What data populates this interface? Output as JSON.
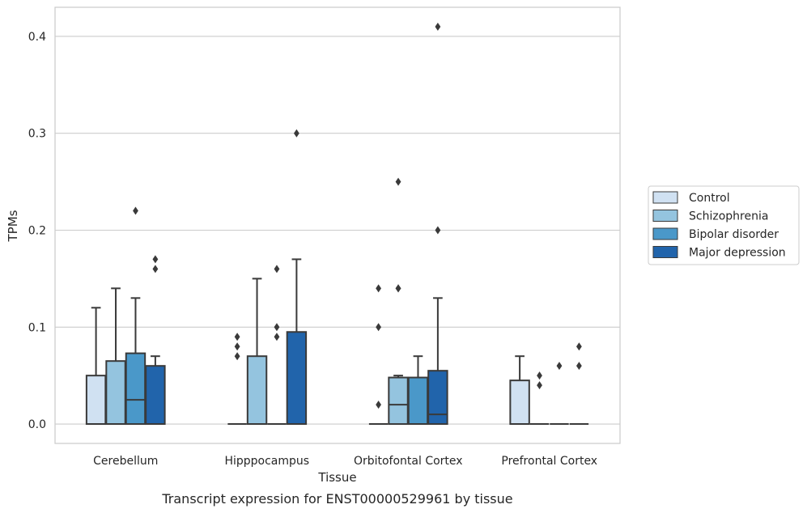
{
  "caption": "Transcript expression for ENST00000529961 by tissue",
  "chart_data": {
    "type": "box",
    "title": "",
    "xlabel": "Tissue",
    "ylabel": "TPMs",
    "ylim": [
      -0.02,
      0.43
    ],
    "yticks": [
      0.0,
      0.1,
      0.2,
      0.3,
      0.4
    ],
    "ytick_labels": [
      "0.0",
      "0.1",
      "0.2",
      "0.3",
      "0.4"
    ],
    "grid": "horizontal",
    "legend_position": "right",
    "categories": [
      "Cerebellum",
      "Hipppocampus",
      "Orbitofontal Cortex",
      "Prefrontal Cortex"
    ],
    "series": [
      {
        "name": "Control",
        "color": "#d0e1f2",
        "boxes": [
          {
            "q1": 0.0,
            "median": 0.0,
            "q3": 0.05,
            "whisker_low": 0.0,
            "whisker_high": 0.12,
            "outliers": []
          },
          {
            "q1": 0.0,
            "median": 0.0,
            "q3": 0.0,
            "whisker_low": 0.0,
            "whisker_high": 0.0,
            "outliers": [
              0.07,
              0.08,
              0.09
            ]
          },
          {
            "q1": 0.0,
            "median": 0.0,
            "q3": 0.0,
            "whisker_low": 0.0,
            "whisker_high": 0.0,
            "outliers": [
              0.02,
              0.1,
              0.14
            ]
          },
          {
            "q1": 0.0,
            "median": 0.0,
            "q3": 0.045,
            "whisker_low": 0.0,
            "whisker_high": 0.07,
            "outliers": []
          }
        ]
      },
      {
        "name": "Schizophrenia",
        "color": "#94c4df",
        "boxes": [
          {
            "q1": 0.0,
            "median": 0.0,
            "q3": 0.065,
            "whisker_low": 0.0,
            "whisker_high": 0.14,
            "outliers": []
          },
          {
            "q1": 0.0,
            "median": 0.0,
            "q3": 0.07,
            "whisker_low": 0.0,
            "whisker_high": 0.15,
            "outliers": []
          },
          {
            "q1": 0.0,
            "median": 0.02,
            "q3": 0.048,
            "whisker_low": 0.0,
            "whisker_high": 0.05,
            "outliers": [
              0.14,
              0.14,
              0.25
            ]
          },
          {
            "q1": 0.0,
            "median": 0.0,
            "q3": 0.0,
            "whisker_low": 0.0,
            "whisker_high": 0.0,
            "outliers": [
              0.04,
              0.05
            ]
          }
        ]
      },
      {
        "name": "Bipolar disorder",
        "color": "#4a98c9",
        "boxes": [
          {
            "q1": 0.0,
            "median": 0.025,
            "q3": 0.073,
            "whisker_low": 0.0,
            "whisker_high": 0.13,
            "outliers": [
              0.22
            ]
          },
          {
            "q1": 0.0,
            "median": 0.0,
            "q3": 0.0,
            "whisker_low": 0.0,
            "whisker_high": 0.0,
            "outliers": [
              0.09,
              0.1,
              0.16
            ]
          },
          {
            "q1": 0.0,
            "median": 0.0,
            "q3": 0.048,
            "whisker_low": 0.0,
            "whisker_high": 0.07,
            "outliers": []
          },
          {
            "q1": 0.0,
            "median": 0.0,
            "q3": 0.0,
            "whisker_low": 0.0,
            "whisker_high": 0.0,
            "outliers": [
              0.06
            ]
          }
        ]
      },
      {
        "name": "Major depression",
        "color": "#2164ab",
        "boxes": [
          {
            "q1": 0.0,
            "median": 0.0,
            "q3": 0.06,
            "whisker_low": 0.0,
            "whisker_high": 0.07,
            "outliers": [
              0.16,
              0.17
            ]
          },
          {
            "q1": 0.0,
            "median": 0.0,
            "q3": 0.095,
            "whisker_low": 0.0,
            "whisker_high": 0.17,
            "outliers": [
              0.3
            ]
          },
          {
            "q1": 0.0,
            "median": 0.01,
            "q3": 0.055,
            "whisker_low": 0.0,
            "whisker_high": 0.13,
            "outliers": [
              0.2,
              0.41
            ]
          },
          {
            "q1": 0.0,
            "median": 0.0,
            "q3": 0.0,
            "whisker_low": 0.0,
            "whisker_high": 0.0,
            "outliers": [
              0.06,
              0.08
            ]
          }
        ]
      }
    ]
  }
}
